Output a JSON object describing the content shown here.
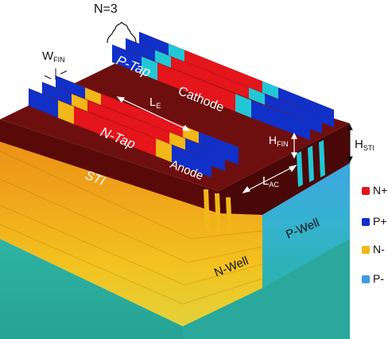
{
  "labels": {
    "n_count": "N=3",
    "w_fin": "W",
    "w_fin_sub": "FIN",
    "p_tap": "P-Tap",
    "cathode": "Cathode",
    "l_e": "L",
    "l_e_sub": "E",
    "n_tap": "N-Tap",
    "sti": "STI",
    "anode": "Anode",
    "h_fin": "H",
    "h_fin_sub": "FIN",
    "l_ac": "L",
    "l_ac_sub": "AC",
    "h_sti": "H",
    "h_sti_sub": "STI",
    "n_well": "N-Well",
    "p_well": "P-Well"
  },
  "legend": [
    {
      "label": "N+",
      "color": "#e4151b"
    },
    {
      "label": "P+",
      "color": "#1030c8"
    },
    {
      "label": "N-",
      "color": "#f2b718"
    },
    {
      "label": "P-",
      "color": "#3f9be0"
    }
  ],
  "colors": {
    "sti_top": "#6e0f0f",
    "sti_dark": "#4a0707",
    "n_plus": "#e4151b",
    "p_plus": "#1030c8",
    "n_minus": "#f2b718",
    "p_minus": "#3f9be0",
    "substrate": "#2aa99a",
    "cyan": "#22c7d6"
  }
}
